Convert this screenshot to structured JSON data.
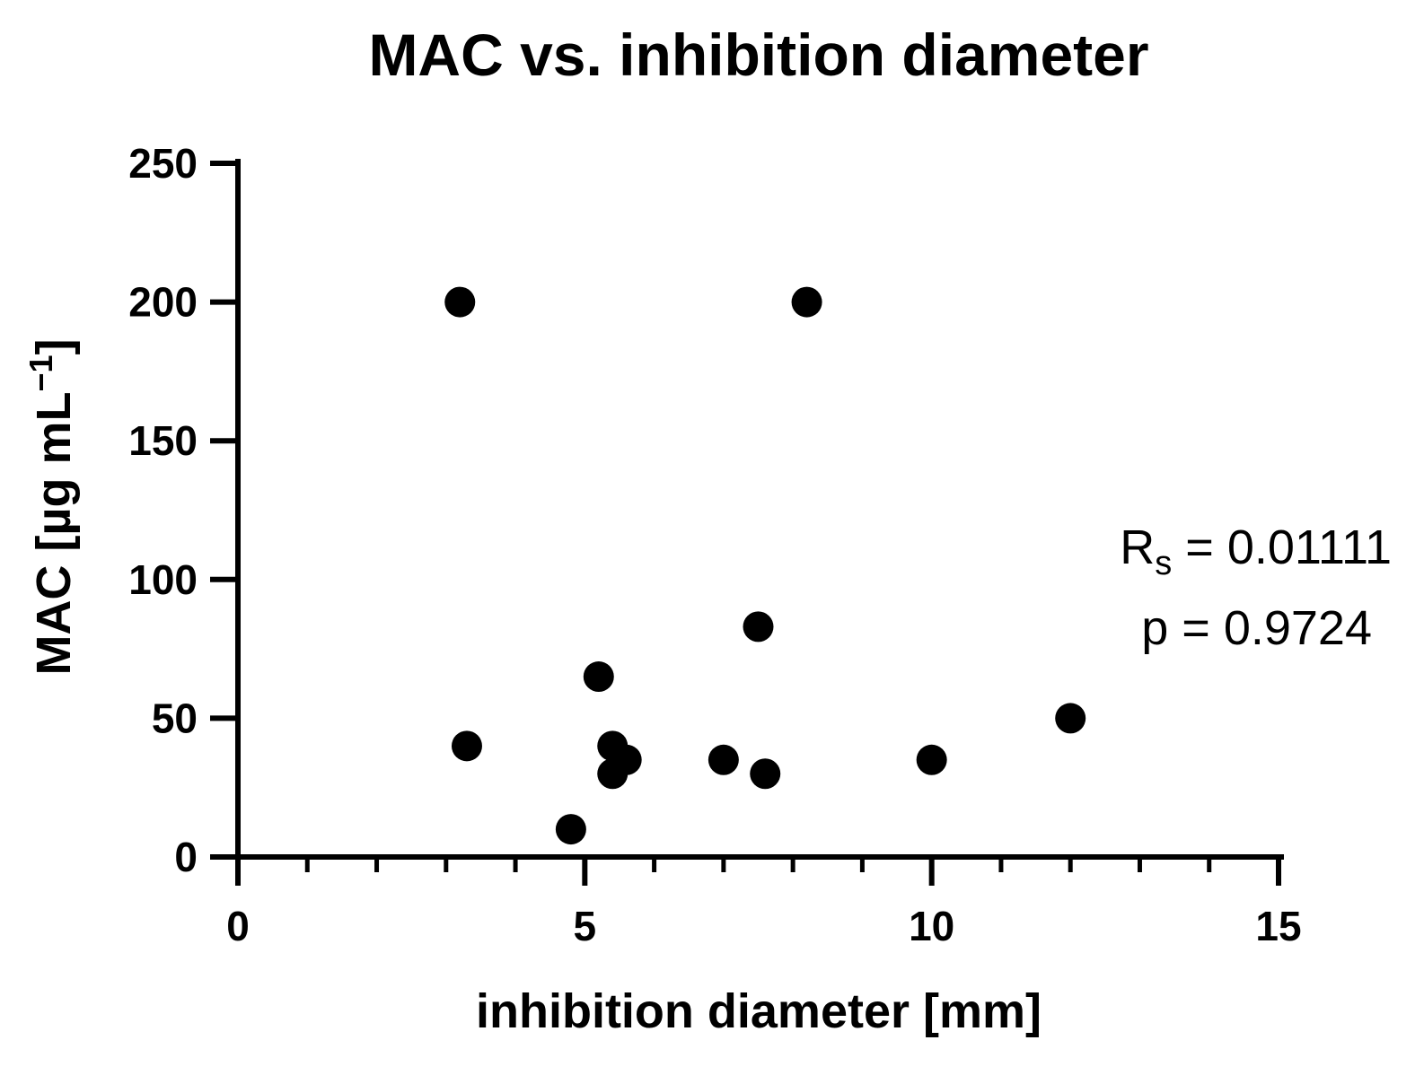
{
  "chart_data": {
    "type": "scatter",
    "title": "MAC vs. inhibition diameter",
    "xlabel": "inhibition diameter [mm]",
    "ylabel": {
      "base": "MAC [µg mL",
      "sup": "−1",
      "close": "]"
    },
    "xlim": [
      0,
      15
    ],
    "ylim": [
      0,
      250
    ],
    "x_ticks": [
      "0",
      "5",
      "10",
      "15"
    ],
    "y_ticks": [
      "0",
      "50",
      "100",
      "150",
      "200",
      "250"
    ],
    "x_minor_step": 1,
    "grid": false,
    "legend": "none",
    "marker_color": "#000000",
    "points": [
      {
        "x": 3.2,
        "y": 200
      },
      {
        "x": 8.2,
        "y": 200
      },
      {
        "x": 3.3,
        "y": 40
      },
      {
        "x": 5.2,
        "y": 65
      },
      {
        "x": 5.4,
        "y": 40
      },
      {
        "x": 5.4,
        "y": 30
      },
      {
        "x": 5.6,
        "y": 35
      },
      {
        "x": 4.8,
        "y": 10
      },
      {
        "x": 7.5,
        "y": 83
      },
      {
        "x": 7.0,
        "y": 35
      },
      {
        "x": 7.6,
        "y": 30
      },
      {
        "x": 10.0,
        "y": 35
      },
      {
        "x": 12.0,
        "y": 50
      }
    ],
    "annotations": {
      "rs_symbol": "R",
      "rs_sub": "s",
      "rs_value": " = 0.01111",
      "p_text": "p = 0.9724"
    }
  }
}
